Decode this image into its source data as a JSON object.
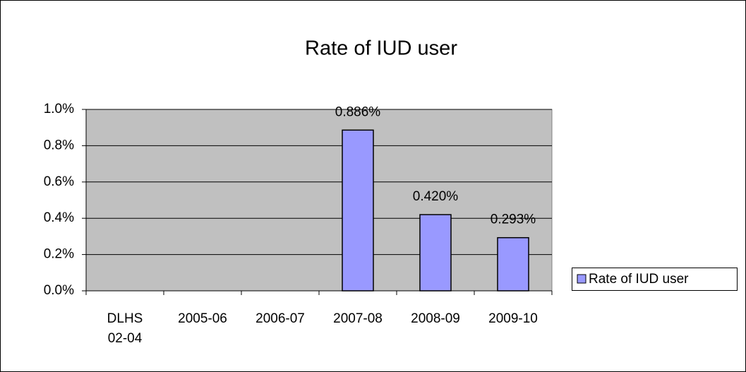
{
  "chart_data": {
    "type": "bar",
    "title": "Rate of IUD user",
    "categories": [
      "DLHS 02-04",
      "2005-06",
      "2006-07",
      "2007-08",
      "2008-09",
      "2009-10"
    ],
    "series": [
      {
        "name": "Rate of IUD user",
        "color": "#9999ff",
        "values": [
          null,
          null,
          null,
          0.886,
          0.42,
          0.293
        ],
        "value_labels": [
          null,
          null,
          null,
          "0.886%",
          "0.420%",
          "0.293%"
        ]
      }
    ],
    "ylim": [
      0,
      1.0
    ],
    "yticks": [
      {
        "value": 0,
        "label": "0.0%"
      },
      {
        "value": 0.2,
        "label": "0.2%"
      },
      {
        "value": 0.4,
        "label": "0.4%"
      },
      {
        "value": 0.6,
        "label": "0.6%"
      },
      {
        "value": 0.8,
        "label": "0.8%"
      },
      {
        "value": 1.0,
        "label": "1.0%"
      }
    ],
    "grid": true,
    "plot_background": "#c0c0c0",
    "legend": "right"
  }
}
